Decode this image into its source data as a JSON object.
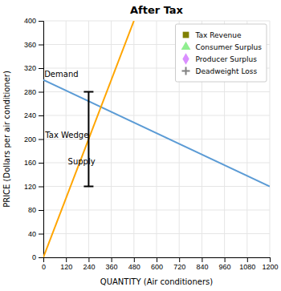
{
  "chart_data": {
    "type": "line",
    "title": "After Tax",
    "x_label": "QUANTITY (Air conditioners)",
    "y_label": "PRICE (Dollars per air conditioner)",
    "xlim": [
      0,
      1200
    ],
    "ylim": [
      0,
      400
    ],
    "xticks": [
      0,
      120,
      240,
      360,
      480,
      600,
      720,
      840,
      960,
      1080,
      1200
    ],
    "yticks": [
      0,
      40,
      80,
      120,
      160,
      200,
      240,
      280,
      320,
      360,
      400
    ],
    "grid": true,
    "series": [
      {
        "color": "#5B9BD5",
        "x": [
          0,
          1200
        ],
        "values": [
          300,
          120
        ]
      },
      {
        "color": "#FFA500",
        "x": [
          0,
          480
        ],
        "values": [
          0,
          400
        ]
      }
    ],
    "tax_wedge": {
      "x": 240,
      "low": 120,
      "high": 280,
      "color": "#000000"
    },
    "annotations": [
      {
        "text": "Demand",
        "x": 5,
        "y": 303
      },
      {
        "text": "Supply",
        "x": 130,
        "y": 155
      },
      {
        "text": "Tax Wedge",
        "x": 10,
        "y": 200
      }
    ],
    "legend": "upper right",
    "legend_items": [
      {
        "label": "Tax Revenue",
        "color": "#808000",
        "marker": "square"
      },
      {
        "label": "Consumer Surplus",
        "color": "#90EE90",
        "marker": "triangle"
      },
      {
        "label": "Producer Surplus",
        "color": "#DA8FFF",
        "marker": "diamond"
      },
      {
        "label": "Deadweight Loss",
        "color": "#808080",
        "marker": "plus"
      }
    ]
  }
}
